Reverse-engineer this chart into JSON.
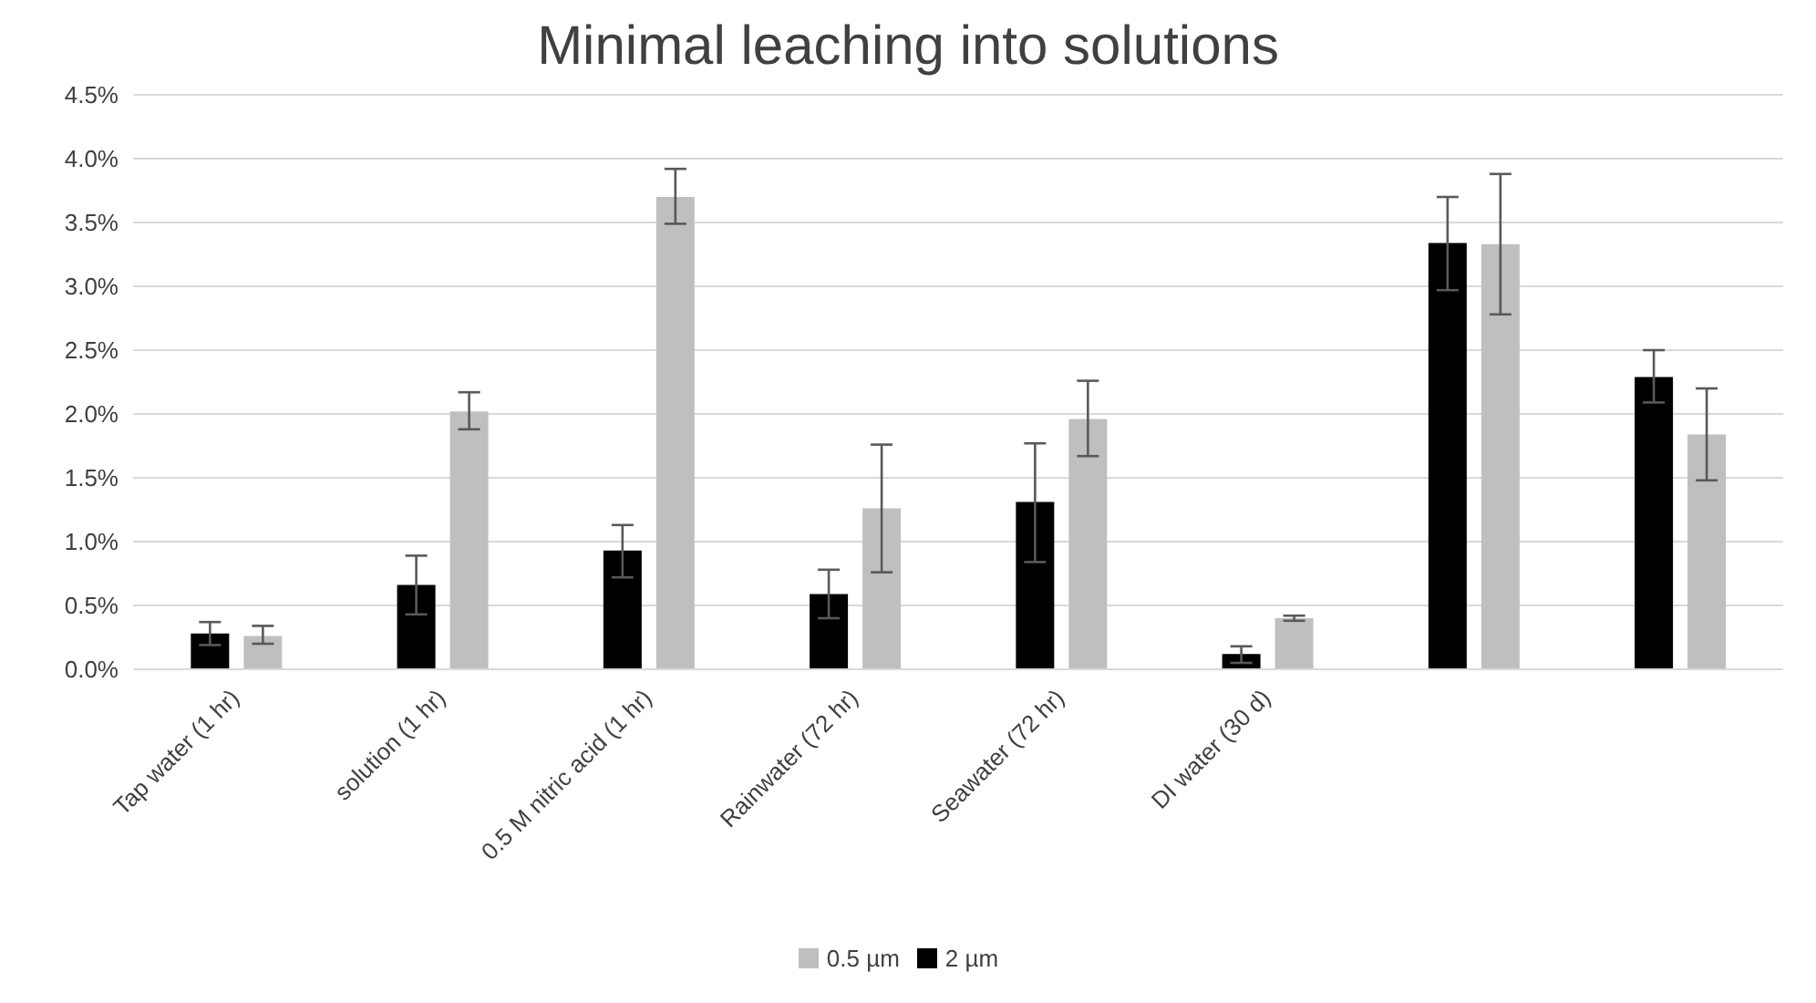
{
  "chart_data": {
    "type": "bar",
    "title": "Minimal leaching into solutions",
    "categories": [
      "Tap water (1 hr)",
      "solution (1 hr)",
      "0.5 M nitric acid (1 hr)",
      "Rainwater (72 hr)",
      "Seawater (72 hr)",
      "DI water  (30 d)",
      null,
      null
    ],
    "series": [
      {
        "name": "2 µm",
        "color": "#000000",
        "values": [
          0.28,
          0.66,
          0.93,
          0.59,
          1.31,
          0.12,
          3.34,
          2.29
        ],
        "errors": [
          [
            0.19,
            0.37
          ],
          [
            0.43,
            0.89
          ],
          [
            0.72,
            1.13
          ],
          [
            0.4,
            0.78
          ],
          [
            0.84,
            1.77
          ],
          [
            0.05,
            0.18
          ],
          [
            2.97,
            3.7
          ],
          [
            2.09,
            2.5
          ]
        ]
      },
      {
        "name": "0.5 µm",
        "color": "#bfbfbf",
        "values": [
          0.26,
          2.02,
          3.7,
          1.26,
          1.96,
          0.4,
          3.33,
          1.84
        ],
        "errors": [
          [
            0.2,
            0.34
          ],
          [
            1.88,
            2.17
          ],
          [
            3.49,
            3.92
          ],
          [
            0.76,
            1.76
          ],
          [
            1.67,
            2.26
          ],
          [
            0.38,
            0.42
          ],
          [
            2.78,
            3.88
          ],
          [
            1.48,
            2.2
          ]
        ]
      }
    ],
    "ylim": [
      0,
      4.5
    ],
    "yticks": [
      {
        "value": 0,
        "label": "0.0%"
      },
      {
        "value": 0.5,
        "label": "0.5%"
      },
      {
        "value": 1,
        "label": "1.0%"
      },
      {
        "value": 1.5,
        "label": "1.5%"
      },
      {
        "value": 2,
        "label": "2.0%"
      },
      {
        "value": 2.5,
        "label": "2.5%"
      },
      {
        "value": 3,
        "label": "3.0%"
      },
      {
        "value": 3.5,
        "label": "3.5%"
      },
      {
        "value": 4,
        "label": "4.0%"
      },
      {
        "value": 4.5,
        "label": "4.5%"
      }
    ],
    "grid": "y",
    "legend": "bottom"
  }
}
